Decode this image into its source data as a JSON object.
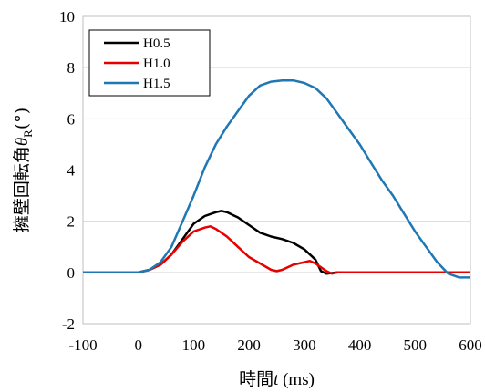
{
  "chart_data": {
    "type": "line",
    "title": "",
    "xlabel": {
      "prefix": "時間",
      "var": "t",
      "unit": " (ms)"
    },
    "ylabel": {
      "prefix": "擁壁回転角",
      "var": "θ",
      "sub": "R",
      "unit": "(°)"
    },
    "xlim": [
      -100,
      600
    ],
    "ylim": [
      -2,
      10
    ],
    "xticks": [
      "-100",
      "0",
      "100",
      "200",
      "300",
      "400",
      "500",
      "600"
    ],
    "yticks": [
      "-2",
      "0",
      "2",
      "4",
      "6",
      "8",
      "10"
    ],
    "grid": "horizontal",
    "legend_position": "top-left",
    "series": [
      {
        "name": "H0.5",
        "color": "#000000",
        "x": [
          -100,
          0,
          20,
          40,
          60,
          80,
          100,
          120,
          140,
          150,
          160,
          180,
          200,
          220,
          240,
          260,
          280,
          300,
          320,
          330,
          340,
          360,
          380,
          400,
          450,
          500,
          550,
          600
        ],
        "y": [
          0,
          0,
          0.1,
          0.3,
          0.7,
          1.3,
          1.9,
          2.2,
          2.35,
          2.4,
          2.35,
          2.15,
          1.85,
          1.55,
          1.4,
          1.3,
          1.15,
          0.9,
          0.5,
          0.05,
          -0.05,
          0,
          0,
          0,
          0,
          0,
          0,
          0
        ]
      },
      {
        "name": "H1.0",
        "color": "#e60000",
        "x": [
          -100,
          0,
          20,
          40,
          60,
          80,
          100,
          120,
          130,
          140,
          160,
          180,
          200,
          220,
          240,
          250,
          260,
          280,
          300,
          310,
          320,
          340,
          350,
          360,
          400,
          450,
          500,
          550,
          600
        ],
        "y": [
          0,
          0,
          0.1,
          0.3,
          0.7,
          1.2,
          1.6,
          1.75,
          1.8,
          1.7,
          1.4,
          1.0,
          0.6,
          0.35,
          0.1,
          0.05,
          0.1,
          0.3,
          0.4,
          0.45,
          0.35,
          0.05,
          -0.05,
          0,
          0,
          0,
          0,
          0,
          0
        ]
      },
      {
        "name": "H1.5",
        "color": "#1f77b4",
        "x": [
          -100,
          0,
          20,
          40,
          60,
          80,
          100,
          120,
          140,
          160,
          180,
          200,
          220,
          240,
          260,
          280,
          300,
          320,
          340,
          360,
          380,
          400,
          420,
          440,
          460,
          480,
          500,
          520,
          540,
          560,
          580,
          600
        ],
        "y": [
          0,
          0,
          0.1,
          0.4,
          1.0,
          2.0,
          3.0,
          4.1,
          5.0,
          5.7,
          6.3,
          6.9,
          7.3,
          7.45,
          7.5,
          7.5,
          7.4,
          7.2,
          6.8,
          6.2,
          5.6,
          5.0,
          4.3,
          3.6,
          3.0,
          2.3,
          1.6,
          1.0,
          0.4,
          -0.05,
          -0.2,
          -0.2
        ]
      }
    ]
  }
}
